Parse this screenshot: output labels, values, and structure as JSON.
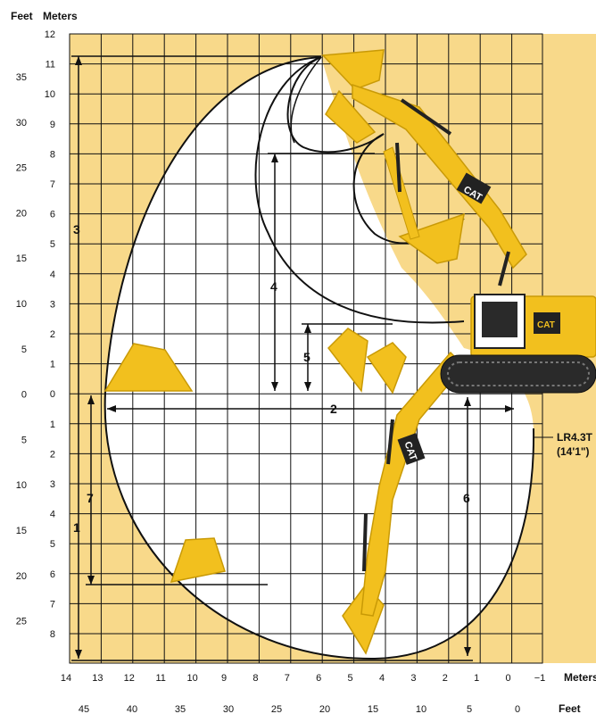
{
  "header": {
    "feet_label": "Feet",
    "meters_label": "Meters"
  },
  "axes": {
    "meters_y": [
      "12",
      "11",
      "10",
      "9",
      "8",
      "7",
      "6",
      "5",
      "4",
      "3",
      "2",
      "1",
      "0",
      "1",
      "2",
      "3",
      "4",
      "5",
      "6",
      "7",
      "8"
    ],
    "feet_y": [
      "35",
      "30",
      "25",
      "20",
      "15",
      "10",
      "5",
      "0",
      "5",
      "10",
      "15",
      "20",
      "25"
    ],
    "meters_x": [
      "14",
      "13",
      "12",
      "11",
      "10",
      "9",
      "8",
      "7",
      "6",
      "5",
      "4",
      "3",
      "2",
      "1",
      "0",
      "−1"
    ],
    "feet_x": [
      "45",
      "40",
      "35",
      "30",
      "25",
      "20",
      "15",
      "10",
      "5",
      "0"
    ],
    "meters_x_unit": "Meters",
    "feet_x_unit": "Feet"
  },
  "dimensions": [
    "1",
    "2",
    "3",
    "4",
    "5",
    "6",
    "7"
  ],
  "stick_label": {
    "line1": "LR4.3T",
    "line2": "(14'1\")"
  },
  "brand": "CAT",
  "colors": {
    "background": "#f8d98a",
    "grid": "#111111",
    "machine": "#f2c01e",
    "machine_dark": "#c99a06",
    "track": "#222222"
  }
}
